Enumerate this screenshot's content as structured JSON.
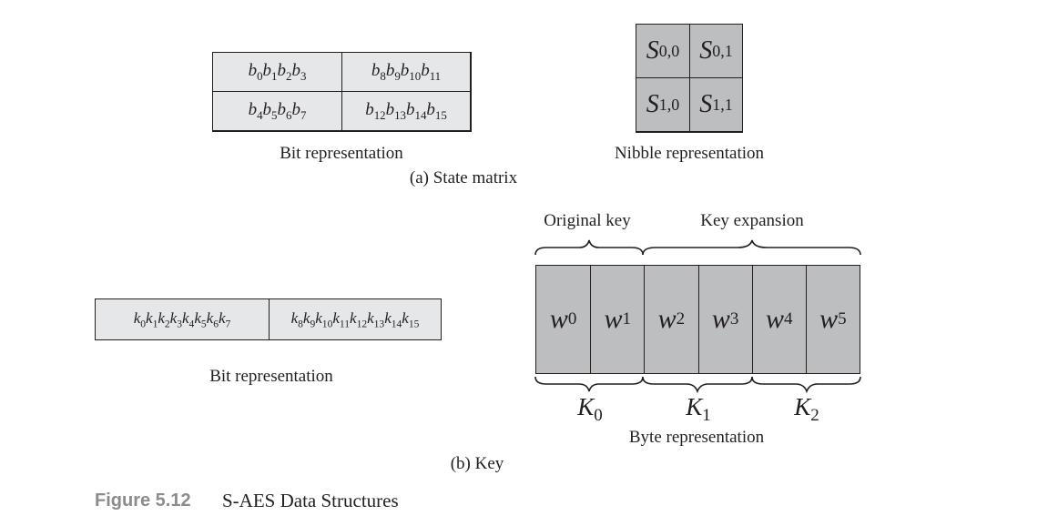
{
  "state_matrix": {
    "bit_cells": [
      [
        "b0b1b2b3",
        "b8b9b10b11"
      ],
      [
        "b4b5b6b7",
        "b12b13b14b15"
      ]
    ],
    "bit_label": "Bit representation",
    "nibble_cells": [
      {
        "sym": "S",
        "idx": "0,0"
      },
      {
        "sym": "S",
        "idx": "0,1"
      },
      {
        "sym": "S",
        "idx": "1,0"
      },
      {
        "sym": "S",
        "idx": "1,1"
      }
    ],
    "nibble_label": "Nibble representation",
    "caption": "(a) State matrix"
  },
  "key": {
    "bit_cells": [
      "k0k1k2k3k4k5k6k7",
      "k8k9k10k11k12k13k14k15"
    ],
    "bit_label": "Bit representation",
    "original_key_label": "Original key",
    "expansion_label": "Key expansion",
    "words": [
      {
        "sym": "w",
        "idx": "0"
      },
      {
        "sym": "w",
        "idx": "1"
      },
      {
        "sym": "w",
        "idx": "2"
      },
      {
        "sym": "w",
        "idx": "3"
      },
      {
        "sym": "w",
        "idx": "4"
      },
      {
        "sym": "w",
        "idx": "5"
      }
    ],
    "round_keys": [
      {
        "sym": "K",
        "idx": "0"
      },
      {
        "sym": "K",
        "idx": "1"
      },
      {
        "sym": "K",
        "idx": "2"
      }
    ],
    "byte_label": "Byte representation",
    "caption": "(b) Key"
  },
  "figure": {
    "label": "Figure 5.12",
    "title": "S-AES Data Structures"
  },
  "colors": {
    "light_fill": "#e6e7e8",
    "dark_fill": "#bcbec0",
    "ink": "#231f20",
    "caption_gray": "#8a8c8e"
  }
}
